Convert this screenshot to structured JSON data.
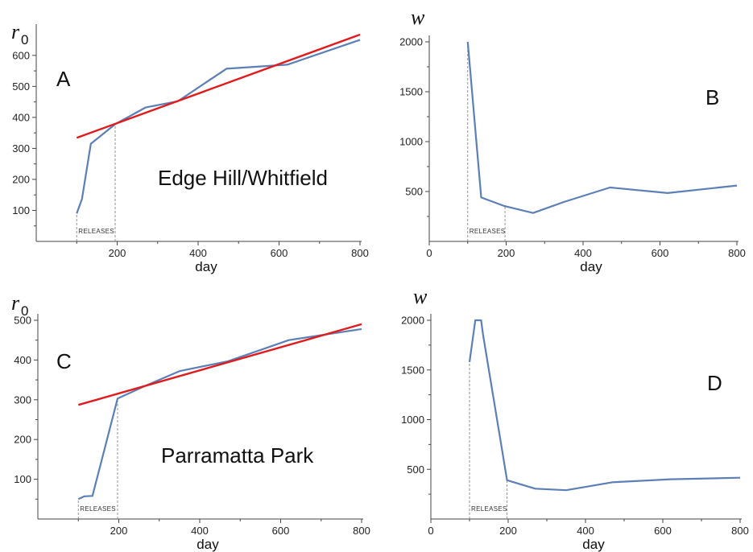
{
  "chart_data": [
    {
      "type": "line",
      "panel": "A",
      "site_label": "Edge Hill/Whitfield",
      "ylabel": "r",
      "ylabel_subscript": "0",
      "xlabel": "day",
      "xticks": [
        "200",
        "400",
        "600",
        "800"
      ],
      "yticks": [
        "100",
        "200",
        "300",
        "400",
        "500",
        "600"
      ],
      "xlim": [
        0,
        800
      ],
      "ylim": [
        0,
        680
      ],
      "releases_label": "RELEASES",
      "releases_window": [
        100,
        195
      ],
      "series": [
        {
          "color": "#5b7fb6",
          "x": [
            100,
            113,
            135,
            195,
            270,
            350,
            470,
            620,
            800
          ],
          "y": [
            90,
            137,
            315,
            378,
            432,
            452,
            557,
            570,
            650
          ]
        },
        {
          "color": "#e31a1c",
          "x": [
            100,
            800
          ],
          "y": [
            334,
            667
          ]
        }
      ]
    },
    {
      "type": "line",
      "panel": "B",
      "ylabel": "w",
      "xlabel": "day",
      "xticks": [
        "0",
        "200",
        "400",
        "600",
        "800"
      ],
      "yticks": [
        "500",
        "1000",
        "1500",
        "2000"
      ],
      "xlim": [
        0,
        800
      ],
      "ylim": [
        0,
        2000
      ],
      "releases_label": "RELEASES",
      "releases_window": [
        100,
        197
      ],
      "series": [
        {
          "color": "#5b7fb6",
          "x": [
            100,
            135,
            195,
            270,
            350,
            470,
            620,
            800
          ],
          "y": [
            2000,
            440,
            355,
            285,
            395,
            540,
            485,
            560
          ]
        }
      ]
    },
    {
      "type": "line",
      "panel": "C",
      "site_label": "Parramatta Park",
      "ylabel": "r",
      "ylabel_subscript": "0",
      "xlabel": "day",
      "xticks": [
        "200",
        "400",
        "600",
        "800"
      ],
      "yticks": [
        "100",
        "200",
        "300",
        "400",
        "500"
      ],
      "xlim": [
        0,
        800
      ],
      "ylim": [
        0,
        500
      ],
      "releases_label": "RELEASES",
      "releases_window": [
        100,
        197
      ],
      "series": [
        {
          "color": "#5b7fb6",
          "x": [
            100,
            115,
            135,
            197,
            270,
            350,
            470,
            620,
            800
          ],
          "y": [
            50,
            57,
            58,
            303,
            337,
            372,
            397,
            450,
            478
          ]
        },
        {
          "color": "#e31a1c",
          "x": [
            100,
            800
          ],
          "y": [
            287,
            490
          ]
        }
      ]
    },
    {
      "type": "line",
      "panel": "D",
      "ylabel": "w",
      "xlabel": "day",
      "xticks": [
        "0",
        "200",
        "400",
        "600",
        "800"
      ],
      "yticks": [
        "500",
        "1000",
        "1500",
        "2000"
      ],
      "xlim": [
        0,
        800
      ],
      "ylim": [
        0,
        2000
      ],
      "releases_label": "RELEASES",
      "releases_window": [
        100,
        197
      ],
      "series": [
        {
          "color": "#5b7fb6",
          "x": [
            100,
            115,
            130,
            135,
            197,
            270,
            350,
            470,
            620,
            800
          ],
          "y": [
            1580,
            2000,
            2000,
            1855,
            390,
            305,
            290,
            370,
            400,
            415
          ]
        }
      ]
    }
  ]
}
